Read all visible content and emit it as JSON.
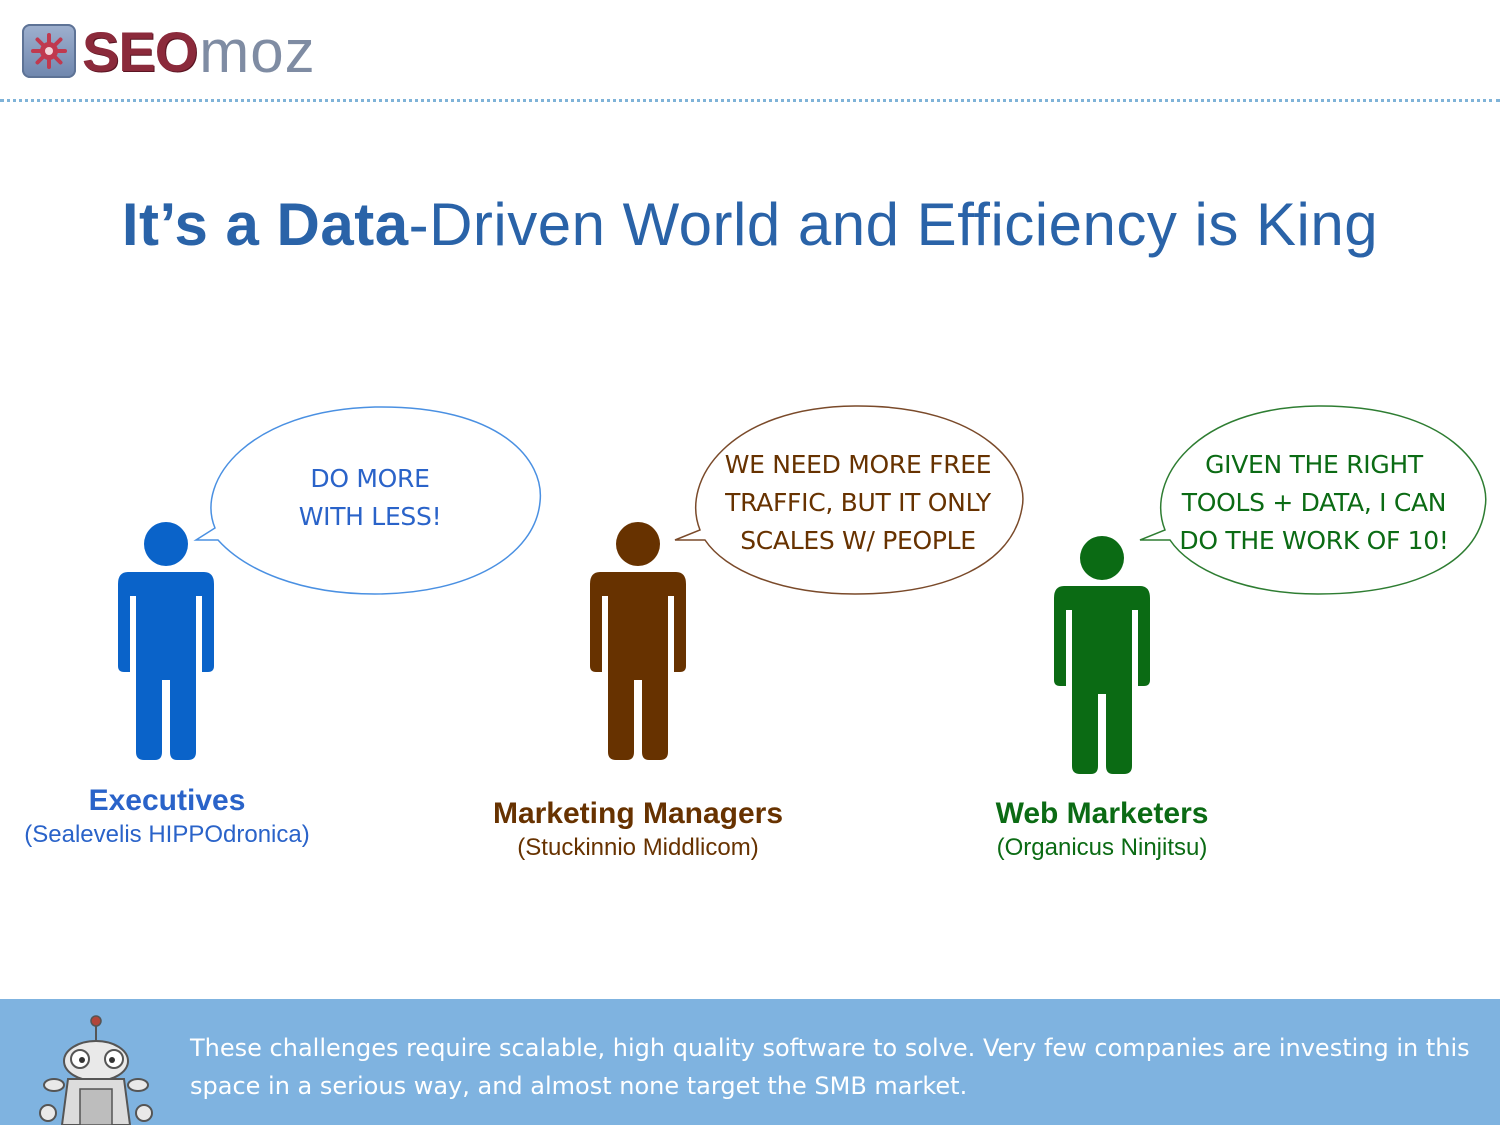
{
  "logo": {
    "seo": "SEO",
    "moz": "moz"
  },
  "title": {
    "bold": "It’s a Data",
    "rest": "-Driven World and Efficiency is King"
  },
  "groups": [
    {
      "bubble_lines": [
        "DO MORE",
        "WITH LESS!"
      ],
      "name": "Executives",
      "latin": "(Sealevelis HIPPOdronica)",
      "color": "#0a63c9",
      "bubble_stroke": "#4a90e2"
    },
    {
      "bubble_lines": [
        "WE NEED MORE FREE",
        "TRAFFIC, BUT IT ONLY",
        "SCALES W/ PEOPLE"
      ],
      "name": "Marketing Managers",
      "latin": "(Stuckinnio Middlicom)",
      "color": "#673200",
      "bubble_stroke": "#7a4a2a"
    },
    {
      "bubble_lines": [
        "GIVEN THE RIGHT",
        "TOOLS + DATA, I CAN",
        "DO THE WORK OF 10!"
      ],
      "name": "Web Marketers",
      "latin": "(Organicus Ninjitsu)",
      "color": "#0b6b14",
      "bubble_stroke": "#2e7d32"
    }
  ],
  "footer": {
    "text": "These challenges require scalable, high quality software to solve. Very few companies are investing in this space in a serious way, and almost none target the SMB market."
  },
  "colors": {
    "title": "#2a63a8",
    "footer_bg": "#7fb3e0",
    "divider": "#7fb3d8"
  },
  "icons": [
    "seomoz-logo-icon",
    "person-icon",
    "speech-bubble-icon",
    "roger-robot-icon"
  ]
}
